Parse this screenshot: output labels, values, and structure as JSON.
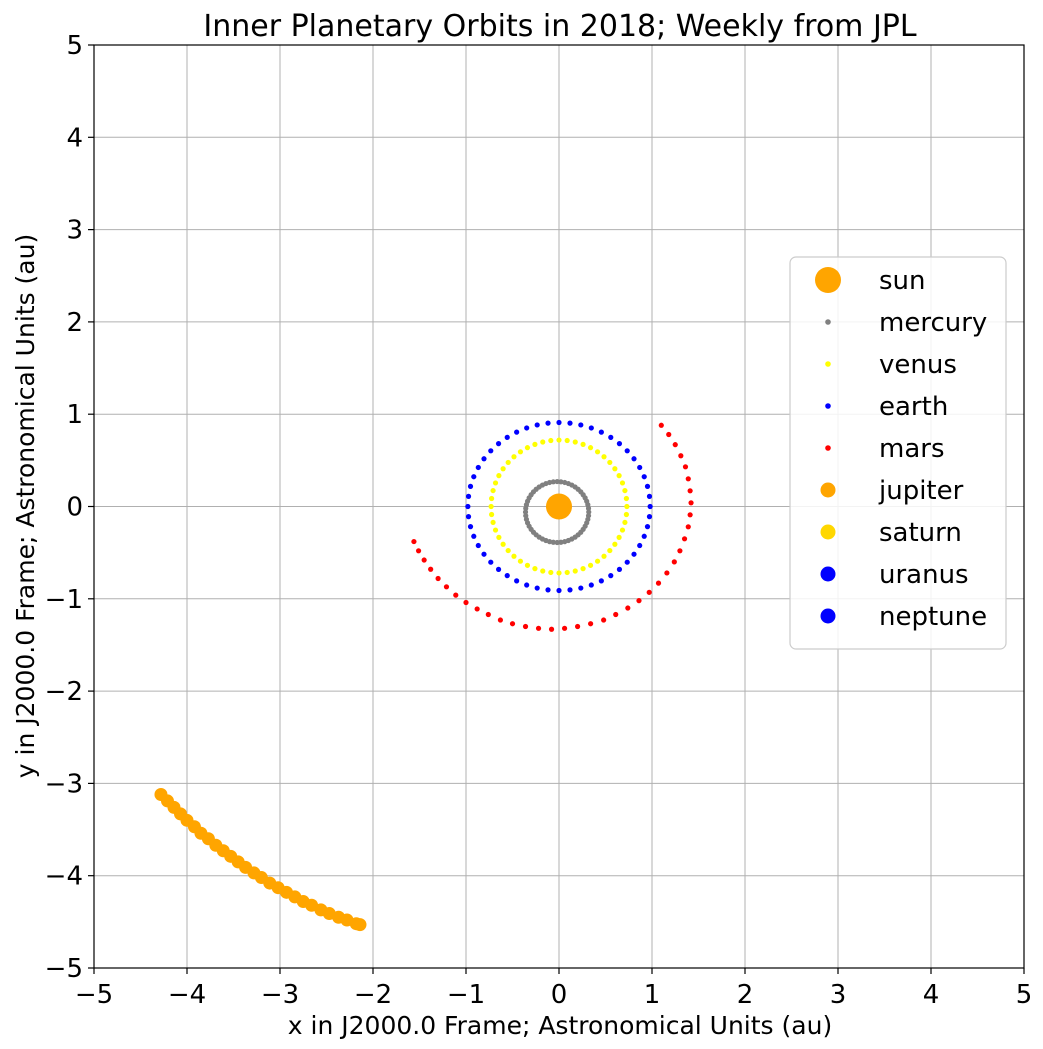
{
  "chart_data": {
    "type": "scatter",
    "title": "Inner Planetary Orbits in 2018; Weekly from JPL",
    "xlabel": "x in J2000.0 Frame; Astronomical Units (au)",
    "ylabel": "y in J2000.0 Frame; Astronomical Units (au)",
    "xlim": [
      -5,
      5
    ],
    "ylim": [
      -5,
      5
    ],
    "x_ticks": [
      -5,
      -4,
      -3,
      -2,
      -1,
      0,
      1,
      2,
      3,
      4,
      5
    ],
    "y_ticks": [
      -5,
      -4,
      -3,
      -2,
      -1,
      0,
      1,
      2,
      3,
      4,
      5
    ],
    "x_tick_labels": [
      "−5",
      "−4",
      "−3",
      "−2",
      "−1",
      "0",
      "1",
      "2",
      "3",
      "4",
      "5"
    ],
    "y_tick_labels": [
      "−5",
      "−4",
      "−3",
      "−2",
      "−1",
      "0",
      "1",
      "2",
      "3",
      "4",
      "5"
    ],
    "grid": true,
    "legend_position": "center-right",
    "series": [
      {
        "name": "sun",
        "color": "#ffa500",
        "marker": "large",
        "points": [
          [
            0,
            0
          ]
        ]
      },
      {
        "name": "mercury",
        "color": "#808080",
        "marker": "small",
        "arc": {
          "cx": -0.02,
          "cy": -0.06,
          "rx": 0.34,
          "ry": 0.33,
          "start_deg": 0,
          "end_deg": 360,
          "count": 52
        }
      },
      {
        "name": "venus",
        "color": "#ffff00",
        "marker": "small",
        "arc": {
          "cx": 0,
          "cy": 0,
          "rx": 0.73,
          "ry": 0.72,
          "start_deg": 0,
          "end_deg": 360,
          "count": 52
        }
      },
      {
        "name": "earth",
        "color": "#0000ff",
        "marker": "small",
        "arc": {
          "cx": 0,
          "cy": 0,
          "rx": 0.98,
          "ry": 0.91,
          "start_deg": 0,
          "end_deg": 360,
          "count": 52
        }
      },
      {
        "name": "mars",
        "color": "#ff0000",
        "marker": "small",
        "points": [
          [
            1.1,
            0.88
          ],
          [
            1.18,
            0.78
          ],
          [
            1.25,
            0.67
          ],
          [
            1.31,
            0.55
          ],
          [
            1.36,
            0.43
          ],
          [
            1.39,
            0.3
          ],
          [
            1.41,
            0.17
          ],
          [
            1.42,
            0.04
          ],
          [
            1.41,
            -0.09
          ],
          [
            1.39,
            -0.22
          ],
          [
            1.35,
            -0.35
          ],
          [
            1.3,
            -0.48
          ],
          [
            1.24,
            -0.6
          ],
          [
            1.16,
            -0.72
          ],
          [
            1.07,
            -0.83
          ],
          [
            0.97,
            -0.93
          ],
          [
            0.86,
            -1.02
          ],
          [
            0.74,
            -1.1
          ],
          [
            0.61,
            -1.17
          ],
          [
            0.48,
            -1.23
          ],
          [
            0.34,
            -1.27
          ],
          [
            0.2,
            -1.3
          ],
          [
            0.06,
            -1.32
          ],
          [
            -0.08,
            -1.33
          ],
          [
            -0.22,
            -1.32
          ],
          [
            -0.36,
            -1.3
          ],
          [
            -0.5,
            -1.27
          ],
          [
            -0.63,
            -1.23
          ],
          [
            -0.76,
            -1.17
          ],
          [
            -0.88,
            -1.11
          ],
          [
            -1.0,
            -1.04
          ],
          [
            -1.11,
            -0.96
          ],
          [
            -1.21,
            -0.87
          ],
          [
            -1.3,
            -0.78
          ],
          [
            -1.38,
            -0.68
          ],
          [
            -1.45,
            -0.58
          ],
          [
            -1.51,
            -0.48
          ],
          [
            -1.56,
            -0.38
          ]
        ]
      },
      {
        "name": "jupiter",
        "color": "#ffa500",
        "marker": "medium",
        "points": [
          [
            -4.28,
            -3.12
          ],
          [
            -4.21,
            -3.19
          ],
          [
            -4.14,
            -3.26
          ],
          [
            -4.07,
            -3.33
          ],
          [
            -4.0,
            -3.4
          ],
          [
            -3.92,
            -3.47
          ],
          [
            -3.85,
            -3.54
          ],
          [
            -3.77,
            -3.6
          ],
          [
            -3.69,
            -3.67
          ],
          [
            -3.61,
            -3.73
          ],
          [
            -3.53,
            -3.79
          ],
          [
            -3.45,
            -3.85
          ],
          [
            -3.37,
            -3.91
          ],
          [
            -3.28,
            -3.97
          ],
          [
            -3.2,
            -4.02
          ],
          [
            -3.11,
            -4.08
          ],
          [
            -3.02,
            -4.13
          ],
          [
            -2.93,
            -4.18
          ],
          [
            -2.84,
            -4.23
          ],
          [
            -2.75,
            -4.28
          ],
          [
            -2.66,
            -4.32
          ],
          [
            -2.56,
            -4.37
          ],
          [
            -2.47,
            -4.41
          ],
          [
            -2.37,
            -4.45
          ],
          [
            -2.28,
            -4.48
          ],
          [
            -2.18,
            -4.52
          ],
          [
            -2.14,
            -4.53
          ]
        ]
      },
      {
        "name": "saturn",
        "color": "#ffd700",
        "marker": "medium",
        "points": []
      },
      {
        "name": "uranus",
        "color": "#0000ff",
        "marker": "medium",
        "points": []
      },
      {
        "name": "neptune",
        "color": "#0000ff",
        "marker": "medium",
        "points": []
      }
    ]
  }
}
